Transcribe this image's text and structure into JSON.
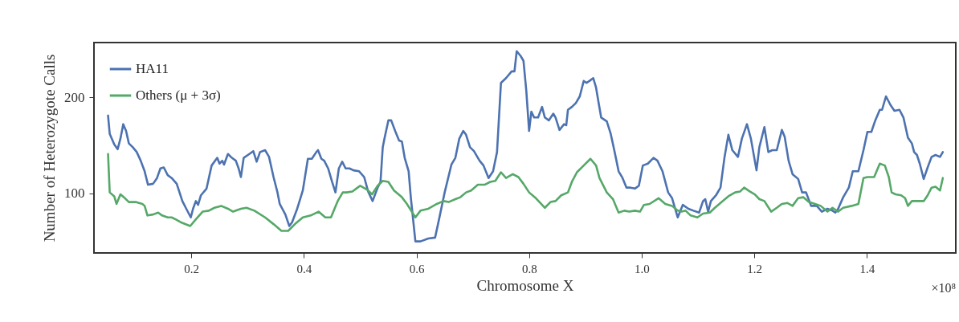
{
  "chart_data": {
    "type": "line",
    "xlabel": "Chromosome X",
    "ylabel": "Number of Heterozygote Calls",
    "xlim": [
      0.027,
      1.558
    ],
    "ylim": [
      38,
      257
    ],
    "xticks": [
      0.2,
      0.4,
      0.6,
      0.8,
      {
        "value": 1.0,
        "label": "1.0"
      },
      1.2,
      1.4
    ],
    "yticks": [
      100,
      200
    ],
    "annotations": [
      "×10⁸"
    ],
    "grid": false,
    "legend": "top left",
    "marker": "none",
    "line_style": "solid",
    "series": [
      {
        "name": "HA11",
        "color": "#4c72b0",
        "x": [
          0.052,
          0.055,
          0.063,
          0.069,
          0.074,
          0.079,
          0.084,
          0.089,
          0.096,
          0.103,
          0.11,
          0.117,
          0.123,
          0.132,
          0.139,
          0.145,
          0.151,
          0.158,
          0.165,
          0.174,
          0.184,
          0.191,
          0.199,
          0.203,
          0.208,
          0.212,
          0.217,
          0.227,
          0.236,
          0.246,
          0.25,
          0.255,
          0.258,
          0.265,
          0.272,
          0.279,
          0.284,
          0.288,
          0.293,
          0.303,
          0.31,
          0.316,
          0.322,
          0.331,
          0.338,
          0.346,
          0.353,
          0.357,
          0.367,
          0.374,
          0.379,
          0.388,
          0.398,
          0.407,
          0.414,
          0.422,
          0.425,
          0.431,
          0.436,
          0.443,
          0.45,
          0.456,
          0.462,
          0.468,
          0.474,
          0.481,
          0.488,
          0.498,
          0.507,
          0.514,
          0.522,
          0.531,
          0.536,
          0.54,
          0.543,
          0.55,
          0.555,
          0.562,
          0.569,
          0.574,
          0.579,
          0.586,
          0.59,
          0.598,
          0.607,
          0.621,
          0.633,
          0.64,
          0.65,
          0.662,
          0.669,
          0.676,
          0.683,
          0.688,
          0.695,
          0.702,
          0.712,
          0.719,
          0.728,
          0.736,
          0.743,
          0.75,
          0.759,
          0.769,
          0.774,
          0.778,
          0.785,
          0.79,
          0.795,
          0.8,
          0.804,
          0.809,
          0.816,
          0.823,
          0.828,
          0.835,
          0.843,
          0.847,
          0.854,
          0.862,
          0.866,
          0.869,
          0.876,
          0.883,
          0.89,
          0.897,
          0.902,
          0.907,
          0.914,
          0.919,
          0.923,
          0.928,
          0.938,
          0.945,
          0.952,
          0.959,
          0.966,
          0.973,
          0.98,
          0.988,
          0.995,
          1.002,
          1.011,
          1.021,
          1.028,
          1.037,
          1.047,
          1.054,
          1.064,
          1.073,
          1.083,
          1.092,
          1.102,
          1.109,
          1.113,
          1.118,
          1.123,
          1.132,
          1.14,
          1.147,
          1.154,
          1.161,
          1.171,
          1.178,
          1.187,
          1.194,
          1.204,
          1.209,
          1.218,
          1.225,
          1.232,
          1.24,
          1.249,
          1.254,
          1.261,
          1.268,
          1.278,
          1.285,
          1.292,
          1.301,
          1.311,
          1.32,
          1.33,
          1.339,
          1.344,
          1.349,
          1.358,
          1.368,
          1.375,
          1.385,
          1.394,
          1.401,
          1.408,
          1.415,
          1.423,
          1.427,
          1.434,
          1.442,
          1.449,
          1.458,
          1.465,
          1.473,
          1.48,
          1.484,
          1.489,
          1.494,
          1.501,
          1.508,
          1.515,
          1.522,
          1.53,
          1.535
        ],
        "values": [
          181,
          162,
          151,
          146,
          157,
          172,
          165,
          152,
          148,
          143,
          134,
          123,
          109,
          110,
          116,
          126,
          127,
          119,
          116,
          110,
          92,
          84,
          75,
          84,
          92,
          88,
          98,
          105,
          129,
          137,
          131,
          134,
          130,
          141,
          137,
          134,
          126,
          117,
          137,
          141,
          144,
          133,
          143,
          145,
          138,
          117,
          101,
          89,
          78,
          66,
          70,
          84,
          103,
          136,
          136,
          143,
          145,
          136,
          134,
          126,
          112,
          101,
          126,
          133,
          126,
          126,
          124,
          123,
          117,
          102,
          92,
          106,
          112,
          148,
          157,
          176,
          176,
          165,
          155,
          154,
          137,
          123,
          95,
          50,
          50,
          53,
          54,
          73,
          101,
          130,
          137,
          157,
          165,
          161,
          148,
          144,
          134,
          129,
          116,
          123,
          143,
          215,
          220,
          227,
          227,
          248,
          243,
          238,
          207,
          165,
          185,
          179,
          179,
          190,
          179,
          176,
          183,
          179,
          166,
          172,
          171,
          187,
          190,
          194,
          201,
          217,
          215,
          217,
          220,
          210,
          196,
          179,
          175,
          162,
          143,
          123,
          116,
          106,
          106,
          105,
          108,
          129,
          131,
          137,
          134,
          123,
          101,
          95,
          75,
          88,
          84,
          82,
          80,
          92,
          94,
          81,
          92,
          98,
          106,
          137,
          161,
          145,
          138,
          157,
          172,
          157,
          124,
          148,
          169,
          143,
          145,
          145,
          166,
          159,
          134,
          120,
          115,
          101,
          101,
          87,
          87,
          81,
          84,
          82,
          80,
          84,
          96,
          106,
          123,
          123,
          145,
          164,
          164,
          176,
          187,
          187,
          201,
          192,
          186,
          187,
          179,
          158,
          152,
          143,
          140,
          131,
          115,
          127,
          138,
          140,
          138,
          143
        ]
      },
      {
        "name": "Others (μ + 3σ)",
        "color": "#55a868",
        "x": [
          0.052,
          0.055,
          0.063,
          0.067,
          0.074,
          0.082,
          0.089,
          0.101,
          0.113,
          0.117,
          0.122,
          0.132,
          0.141,
          0.148,
          0.158,
          0.165,
          0.172,
          0.181,
          0.198,
          0.208,
          0.22,
          0.231,
          0.241,
          0.253,
          0.265,
          0.274,
          0.288,
          0.298,
          0.312,
          0.331,
          0.346,
          0.36,
          0.372,
          0.384,
          0.398,
          0.412,
          0.426,
          0.438,
          0.448,
          0.46,
          0.469,
          0.476,
          0.486,
          0.493,
          0.5,
          0.512,
          0.521,
          0.531,
          0.54,
          0.55,
          0.56,
          0.574,
          0.583,
          0.598,
          0.607,
          0.621,
          0.636,
          0.648,
          0.657,
          0.669,
          0.678,
          0.688,
          0.697,
          0.709,
          0.721,
          0.731,
          0.74,
          0.75,
          0.759,
          0.771,
          0.781,
          0.79,
          0.8,
          0.812,
          0.828,
          0.838,
          0.847,
          0.857,
          0.869,
          0.876,
          0.885,
          0.897,
          0.909,
          0.919,
          0.925,
          0.938,
          0.949,
          0.959,
          0.969,
          0.978,
          0.988,
          0.997,
          1.004,
          1.014,
          1.03,
          1.042,
          1.054,
          1.064,
          1.071,
          1.078,
          1.087,
          1.099,
          1.109,
          1.121,
          1.13,
          1.14,
          1.154,
          1.166,
          1.175,
          1.182,
          1.192,
          1.201,
          1.209,
          1.218,
          1.23,
          1.24,
          1.249,
          1.259,
          1.268,
          1.278,
          1.287,
          1.297,
          1.308,
          1.318,
          1.33,
          1.339,
          1.349,
          1.358,
          1.373,
          1.385,
          1.394,
          1.401,
          1.413,
          1.423,
          1.432,
          1.439,
          1.444,
          1.451,
          1.461,
          1.468,
          1.473,
          1.48,
          1.489,
          1.501,
          1.508,
          1.515,
          1.522,
          1.53,
          1.535
        ],
        "values": [
          141,
          101,
          97,
          89,
          99,
          95,
          91,
          91,
          89,
          87,
          77,
          78,
          80,
          77,
          75,
          75,
          73,
          70,
          66,
          73,
          81,
          82,
          85,
          87,
          84,
          81,
          84,
          85,
          82,
          75,
          68,
          61,
          61,
          68,
          75,
          77,
          81,
          75,
          75,
          92,
          101,
          101,
          102,
          105,
          108,
          104,
          99,
          108,
          113,
          112,
          103,
          96,
          89,
          75,
          82,
          84,
          89,
          92,
          91,
          94,
          96,
          101,
          103,
          109,
          109,
          112,
          113,
          122,
          116,
          120,
          117,
          110,
          101,
          95,
          85,
          91,
          92,
          98,
          101,
          112,
          122,
          129,
          136,
          129,
          116,
          101,
          94,
          80,
          82,
          81,
          82,
          81,
          88,
          89,
          95,
          89,
          87,
          82,
          81,
          82,
          77,
          75,
          79,
          80,
          85,
          90,
          97,
          101,
          102,
          106,
          102,
          99,
          94,
          92,
          81,
          85,
          89,
          90,
          87,
          95,
          96,
          91,
          89,
          87,
          81,
          85,
          81,
          85,
          87,
          89,
          116,
          117,
          117,
          131,
          129,
          117,
          101,
          99,
          98,
          95,
          87,
          92,
          92,
          92,
          98,
          106,
          107,
          103,
          116
        ]
      }
    ]
  }
}
